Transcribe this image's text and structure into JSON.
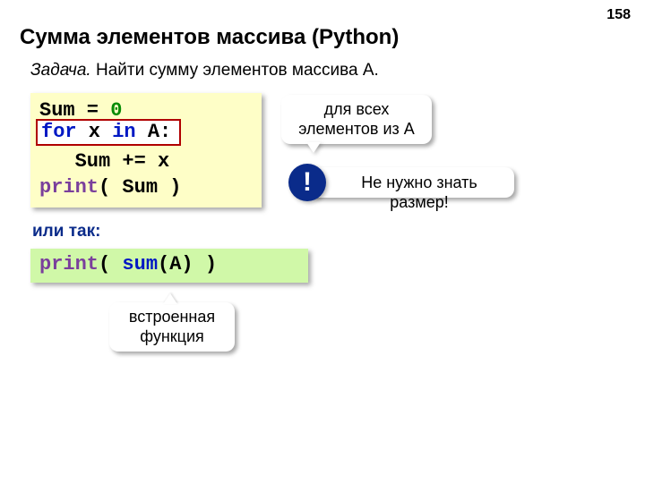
{
  "page_number": "158",
  "title": "Сумма элементов массива (Python)",
  "task_prefix": "Задача.",
  "task_text": " Найти сумму элементов массива A.",
  "code1": {
    "sum": "Sum",
    "eq": " = ",
    "zero": "0",
    "for": "for",
    "x": " x ",
    "in": "in",
    "a": " A:",
    "sum_plus": "   Sum += x",
    "print": "print",
    "print_arg": "( Sum )"
  },
  "for_box": {
    "for": "for",
    "x": " x ",
    "in": "in",
    "a": " A:"
  },
  "callout1_line1": "для всех",
  "callout1_line2": "элементов из A",
  "exclaim": "!",
  "callout2": "Не нужно знать размер!",
  "or_so": "или так:",
  "code2": {
    "print": "print",
    "open": "( ",
    "sum": "sum",
    "arg": "(A)",
    "close": " )"
  },
  "callout3_line1": "встроенная",
  "callout3_line2": "функция"
}
